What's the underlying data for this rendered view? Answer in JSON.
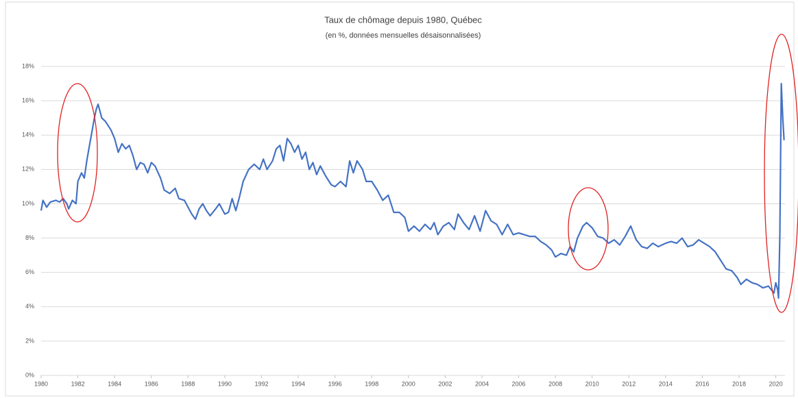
{
  "chart_data": {
    "type": "line",
    "title": "Taux de chômage depuis 1980, Québec",
    "subtitle": "(en %, données mensuelles désaisonnalisées)",
    "color": "#4472c4",
    "grid": true,
    "x": [
      1980.0,
      1980.1,
      1980.3,
      1980.5,
      1980.8,
      1981.0,
      1981.2,
      1981.4,
      1981.5,
      1981.7,
      1981.9,
      1982.0,
      1982.2,
      1982.35,
      1982.5,
      1982.7,
      1982.9,
      1983.0,
      1983.1,
      1983.3,
      1983.5,
      1983.8,
      1984.0,
      1984.2,
      1984.4,
      1984.6,
      1984.8,
      1985.0,
      1985.2,
      1985.4,
      1985.6,
      1985.8,
      1986.0,
      1986.2,
      1986.5,
      1986.7,
      1987.0,
      1987.3,
      1987.5,
      1987.8,
      1988.0,
      1988.2,
      1988.4,
      1988.6,
      1988.8,
      1989.0,
      1989.2,
      1989.5,
      1989.7,
      1990.0,
      1990.2,
      1990.4,
      1990.6,
      1990.8,
      1991.0,
      1991.3,
      1991.6,
      1991.9,
      1992.1,
      1992.3,
      1992.6,
      1992.8,
      1993.0,
      1993.2,
      1993.4,
      1993.6,
      1993.8,
      1994.0,
      1994.2,
      1994.4,
      1994.6,
      1994.8,
      1995.0,
      1995.2,
      1995.5,
      1995.8,
      1996.0,
      1996.3,
      1996.6,
      1996.8,
      1997.0,
      1997.2,
      1997.5,
      1997.7,
      1998.0,
      1998.3,
      1998.6,
      1998.9,
      1999.2,
      1999.5,
      1999.8,
      2000.0,
      2000.3,
      2000.6,
      2000.9,
      2001.2,
      2001.4,
      2001.6,
      2001.9,
      2002.2,
      2002.5,
      2002.7,
      2003.0,
      2003.3,
      2003.6,
      2003.9,
      2004.2,
      2004.5,
      2004.8,
      2005.1,
      2005.4,
      2005.7,
      2006.0,
      2006.3,
      2006.6,
      2006.9,
      2007.2,
      2007.5,
      2007.8,
      2008.0,
      2008.3,
      2008.6,
      2008.8,
      2009.0,
      2009.2,
      2009.5,
      2009.7,
      2010.0,
      2010.3,
      2010.6,
      2010.9,
      2011.2,
      2011.5,
      2011.8,
      2012.1,
      2012.4,
      2012.7,
      2013.0,
      2013.3,
      2013.6,
      2014.0,
      2014.3,
      2014.6,
      2014.9,
      2015.2,
      2015.5,
      2015.8,
      2016.1,
      2016.4,
      2016.7,
      2017.0,
      2017.3,
      2017.6,
      2017.9,
      2018.1,
      2018.4,
      2018.7,
      2019.0,
      2019.3,
      2019.6,
      2019.9,
      2020.0,
      2020.1,
      2020.15,
      2020.22,
      2020.3,
      2020.38,
      2020.45
    ],
    "values": [
      9.6,
      10.2,
      9.8,
      10.1,
      10.2,
      10.1,
      10.3,
      10.0,
      9.7,
      10.2,
      10.0,
      11.3,
      11.8,
      11.5,
      12.6,
      13.8,
      15.0,
      15.5,
      15.8,
      15.0,
      14.8,
      14.3,
      13.8,
      13.0,
      13.5,
      13.2,
      13.4,
      12.8,
      12.0,
      12.4,
      12.3,
      11.8,
      12.4,
      12.2,
      11.5,
      10.8,
      10.6,
      10.9,
      10.3,
      10.2,
      9.8,
      9.4,
      9.1,
      9.7,
      10.0,
      9.6,
      9.3,
      9.7,
      10.0,
      9.4,
      9.5,
      10.3,
      9.6,
      10.4,
      11.3,
      12.0,
      12.3,
      12.0,
      12.6,
      12.0,
      12.5,
      13.2,
      13.4,
      12.5,
      13.8,
      13.5,
      13.0,
      13.4,
      12.6,
      13.0,
      12.0,
      12.4,
      11.7,
      12.2,
      11.6,
      11.1,
      11.0,
      11.3,
      11.0,
      12.5,
      11.8,
      12.5,
      12.0,
      11.3,
      11.3,
      10.8,
      10.2,
      10.5,
      9.5,
      9.5,
      9.2,
      8.4,
      8.7,
      8.4,
      8.8,
      8.5,
      8.9,
      8.2,
      8.7,
      8.9,
      8.5,
      9.4,
      8.9,
      8.5,
      9.3,
      8.4,
      9.6,
      9.0,
      8.8,
      8.2,
      8.8,
      8.2,
      8.3,
      8.2,
      8.1,
      8.1,
      7.8,
      7.6,
      7.3,
      6.9,
      7.1,
      7.0,
      7.5,
      7.2,
      8.0,
      8.7,
      8.9,
      8.6,
      8.1,
      8.0,
      7.7,
      7.9,
      7.6,
      8.1,
      8.7,
      7.9,
      7.5,
      7.4,
      7.7,
      7.5,
      7.7,
      7.8,
      7.7,
      8.0,
      7.5,
      7.6,
      7.9,
      7.7,
      7.5,
      7.2,
      6.7,
      6.2,
      6.1,
      5.7,
      5.3,
      5.6,
      5.4,
      5.3,
      5.1,
      5.2,
      4.8,
      5.4,
      5.0,
      4.5,
      8.1,
      17.0,
      15.0,
      13.7
    ],
    "xlim": [
      1980,
      2020.5
    ],
    "xticks": [
      1980,
      1982,
      1984,
      1986,
      1988,
      1990,
      1992,
      1994,
      1996,
      1998,
      2000,
      2002,
      2004,
      2006,
      2008,
      2010,
      2012,
      2014,
      2016,
      2018,
      2020
    ],
    "ylim": [
      0,
      18
    ],
    "yticks": [
      {
        "value": 0,
        "label": "0%"
      },
      {
        "value": 2,
        "label": "2%"
      },
      {
        "value": 4,
        "label": "4%"
      },
      {
        "value": 6,
        "label": "6%"
      },
      {
        "value": 8,
        "label": "8%"
      },
      {
        "value": 10,
        "label": "10%"
      },
      {
        "value": 12,
        "label": "12%"
      },
      {
        "value": 14,
        "label": "14%"
      },
      {
        "value": 16,
        "label": "16%"
      },
      {
        "value": 18,
        "label": "18%"
      }
    ]
  }
}
